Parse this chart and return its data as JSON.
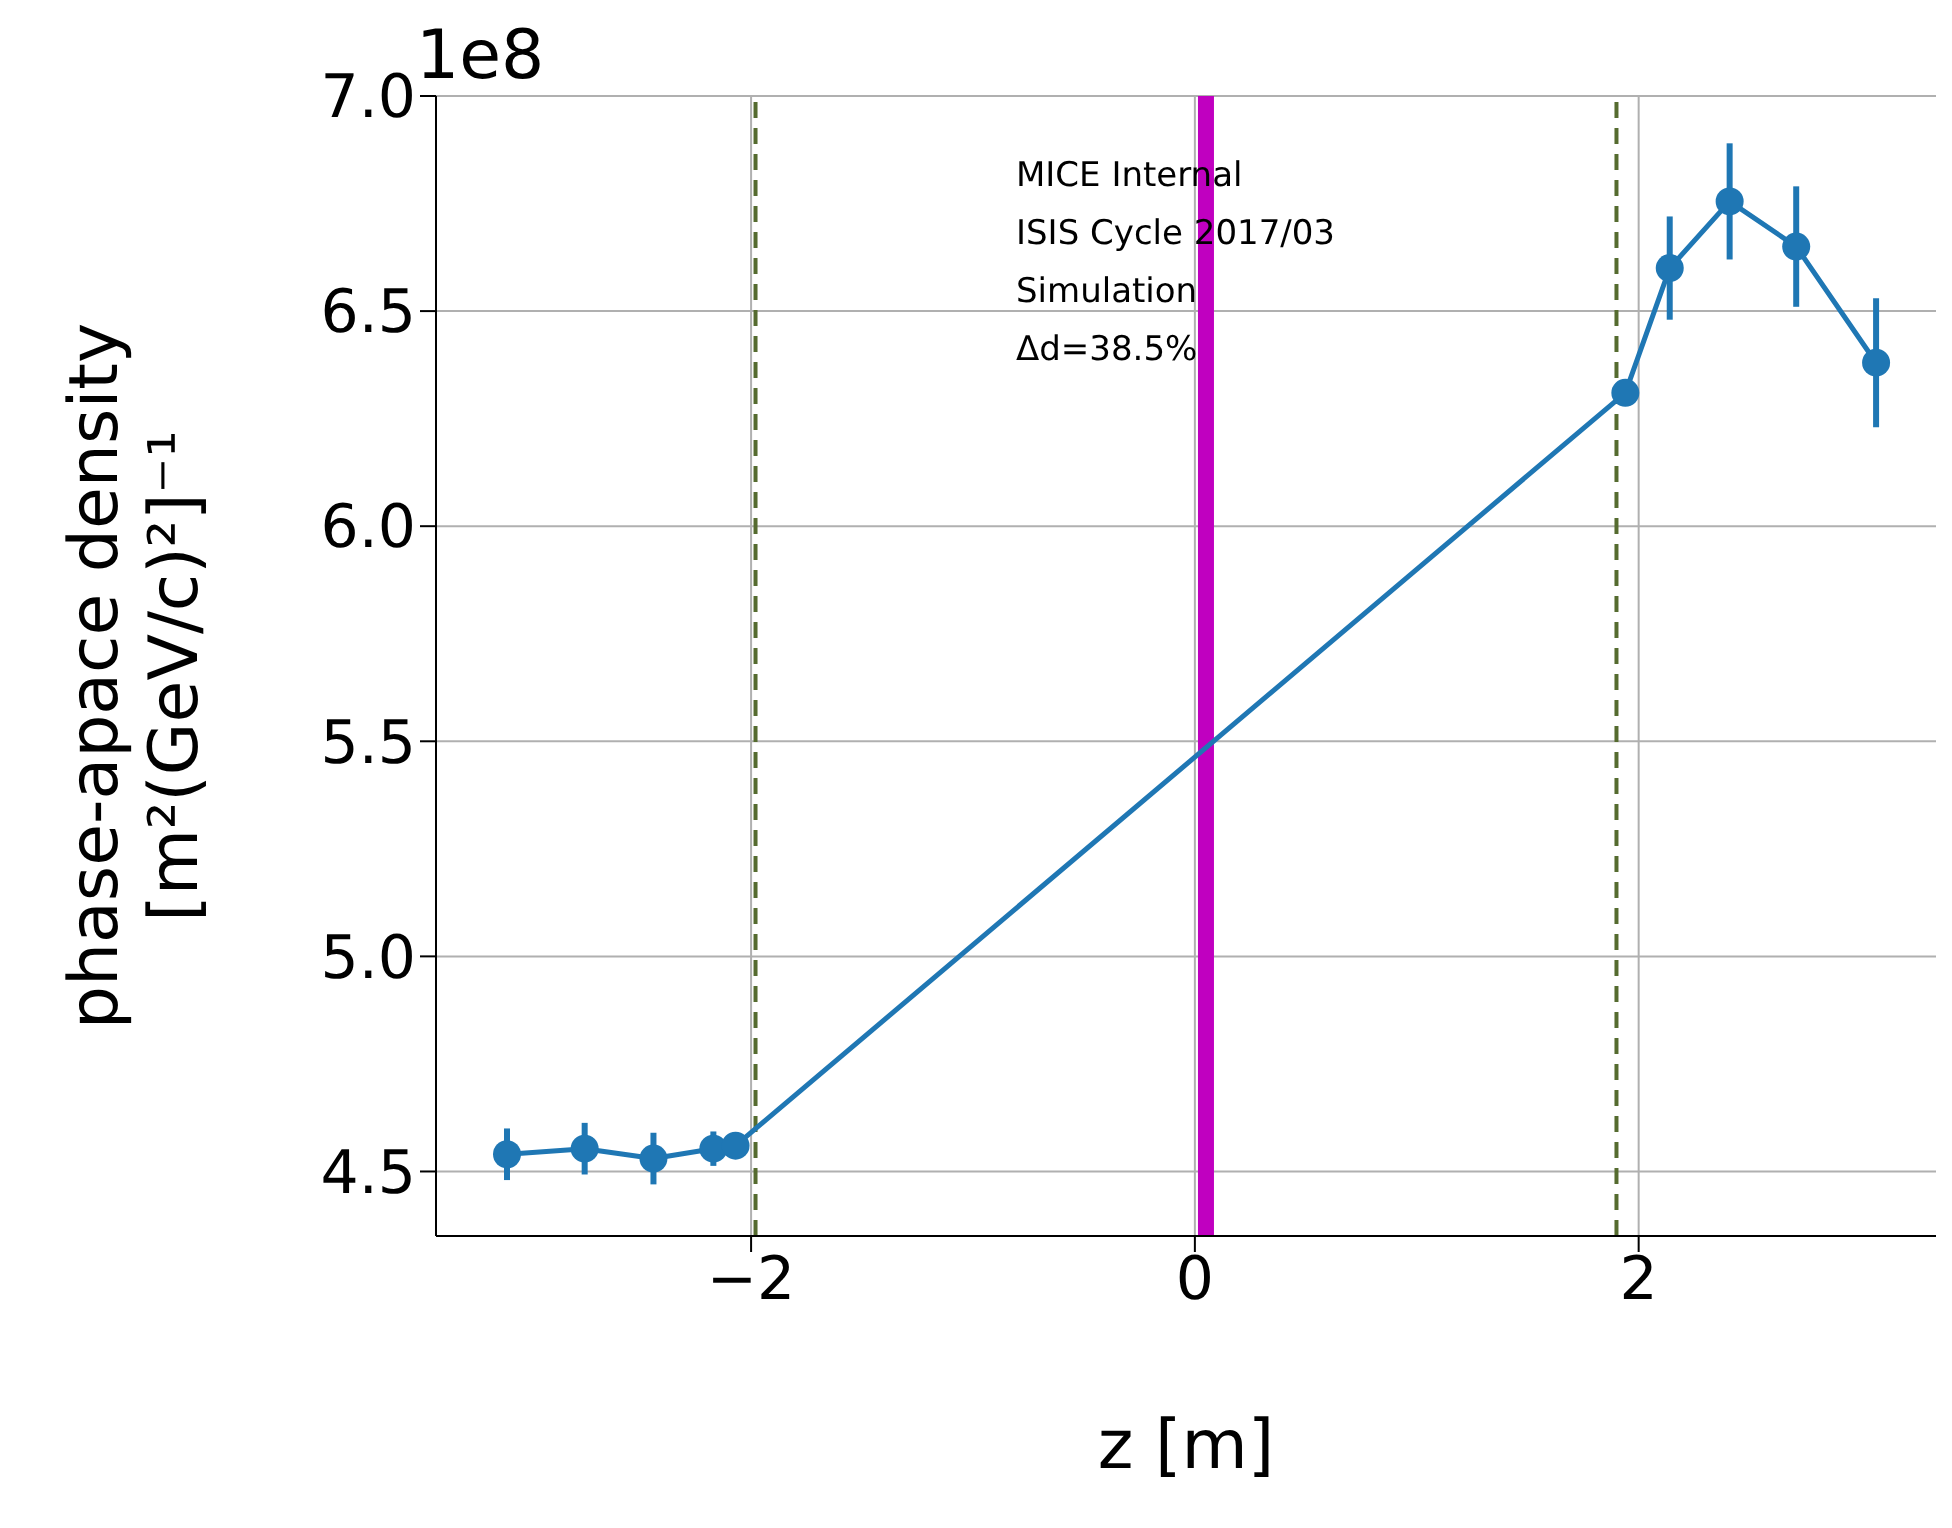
{
  "chart_data": {
    "type": "line",
    "xlabel": "z [m]",
    "ylabel": "phase-apace density\n[m²(GeV/c)²]⁻¹",
    "annotations": [
      "1e8",
      "MICE Internal",
      "ISIS Cycle 2017/03",
      "Simulation",
      "Δd=38.5%"
    ],
    "x": [
      -3.1,
      -2.75,
      -2.44,
      -2.17,
      -2.07,
      1.94,
      2.14,
      2.41,
      2.71,
      3.07
    ],
    "series": [
      {
        "color": "#1f77b4",
        "values": [
          4.54,
          4.553,
          4.53,
          4.553,
          4.56,
          6.31,
          6.6,
          6.755,
          6.65,
          6.38
        ],
        "errors": [
          0.06,
          0.06,
          0.06,
          0.04,
          0.03,
          0.02,
          0.12,
          0.135,
          0.14,
          0.15
        ]
      }
    ],
    "xlim": [
      -3.42,
      3.34
    ],
    "ylim": [
      4.35,
      7.0
    ],
    "xticks": [
      {
        "value": -2,
        "label": "−2"
      },
      0,
      2
    ],
    "yticks": [
      {
        "value": 4.5,
        "label": "4.5"
      },
      {
        "value": 5.0,
        "label": "5.0"
      },
      {
        "value": 5.5,
        "label": "5.5"
      },
      {
        "value": 6.0,
        "label": "6.0"
      },
      {
        "value": 6.5,
        "label": "6.5"
      },
      {
        "value": 7.0,
        "label": "7.0"
      }
    ],
    "ref_lines": [
      {
        "axis": "x",
        "value": -1.98,
        "color": "#556b2f",
        "line_style": "dashed"
      },
      {
        "axis": "x",
        "value": 1.9,
        "color": "#556b2f",
        "line_style": "dashed"
      },
      {
        "axis": "x",
        "value": 0.05,
        "color": "#c000c0",
        "line_style": "solid"
      }
    ],
    "grid": true,
    "marker": "circle",
    "line_style": "solid"
  }
}
